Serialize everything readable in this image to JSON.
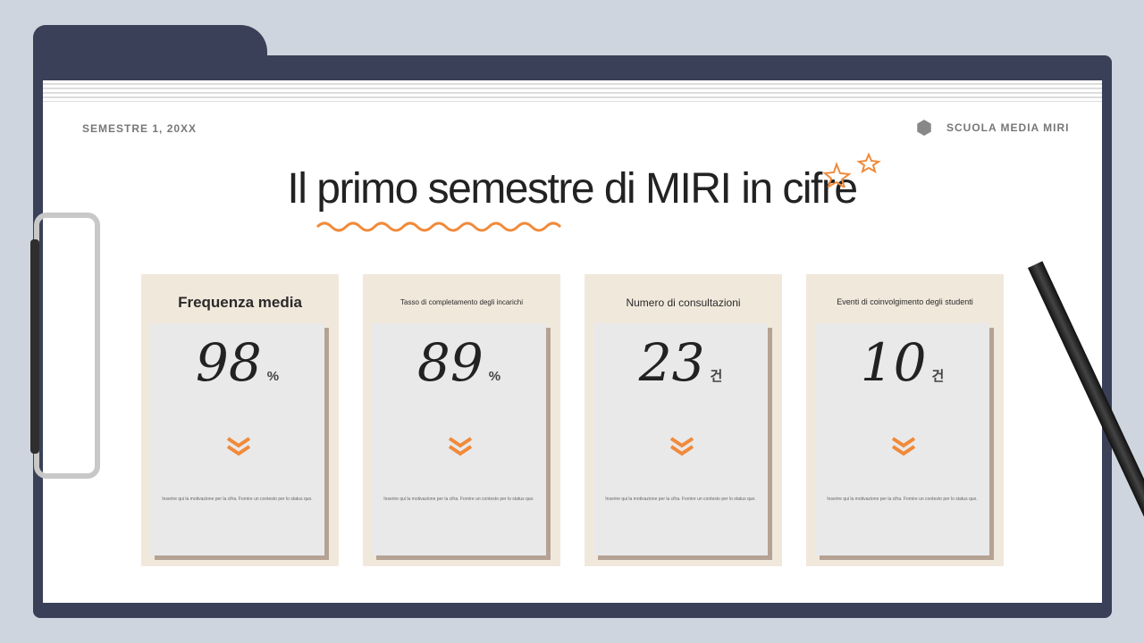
{
  "header": {
    "semester": "SEMESTRE 1, 20XX",
    "school": "SCUOLA MEDIA MIRI"
  },
  "title": "Il primo semestre di MIRI in cifre",
  "accent": "#f08a3a",
  "cards": [
    {
      "title": "Frequenza media",
      "value": "98",
      "unit": "%",
      "description": "Inserire qui la motivazione per la cifra. Fornire un contesto per lo status quo."
    },
    {
      "title": "Tasso di completamento degli incarichi",
      "value": "89",
      "unit": "%",
      "description": "Inserire qui la motivazione per la cifra. Fornire un contesto per lo status quo."
    },
    {
      "title": "Numero di consultazioni",
      "value": "23",
      "unit": "건",
      "description": "Inserire qui la motivazione per la cifra. Fornire un contesto per lo status quo."
    },
    {
      "title": "Eventi di coinvolgimento degli studenti",
      "value": "10",
      "unit": "건",
      "description": "Inserire qui la motivazione per la cifra. Fornire un contesto per lo status quo."
    }
  ]
}
